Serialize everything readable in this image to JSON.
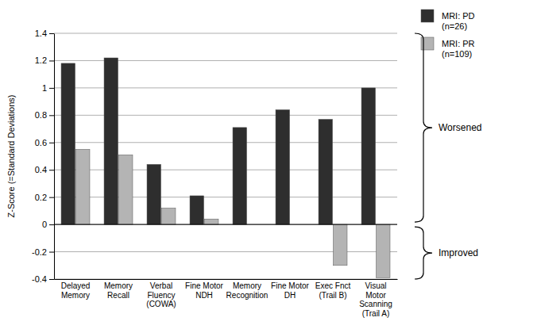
{
  "chart_data": {
    "type": "bar",
    "y_label": "Z-Score (=Standard Deviations)",
    "categories": [
      "Delayed Memory",
      "Memory Recall",
      "Verbal Fluency (COWA)",
      "Fine Motor NDH",
      "Memory Recognition",
      "Fine Motor DH",
      "Exec Fnct (Trail B)",
      "Visual Motor Scanning (Trail A)"
    ],
    "series": [
      {
        "name": "MRI: PD (n=26)",
        "color": "#2e2e2e",
        "values": [
          1.18,
          1.22,
          0.44,
          0.21,
          0.71,
          0.84,
          0.77,
          1.0
        ]
      },
      {
        "name": "MRI: PR (n=109)",
        "color": "#b4b4b4",
        "values": [
          0.55,
          0.51,
          0.12,
          0.04,
          0,
          0,
          -0.3,
          -0.39
        ]
      }
    ],
    "ylim": [
      -0.4,
      1.4
    ],
    "yticks": [
      -0.4,
      -0.2,
      0,
      0.2,
      0.4,
      0.6,
      0.8,
      1,
      1.2,
      1.4
    ],
    "grid": true,
    "legend": "right",
    "annotations": [
      {
        "text": "Worsened"
      },
      {
        "text": "Improved"
      }
    ]
  }
}
